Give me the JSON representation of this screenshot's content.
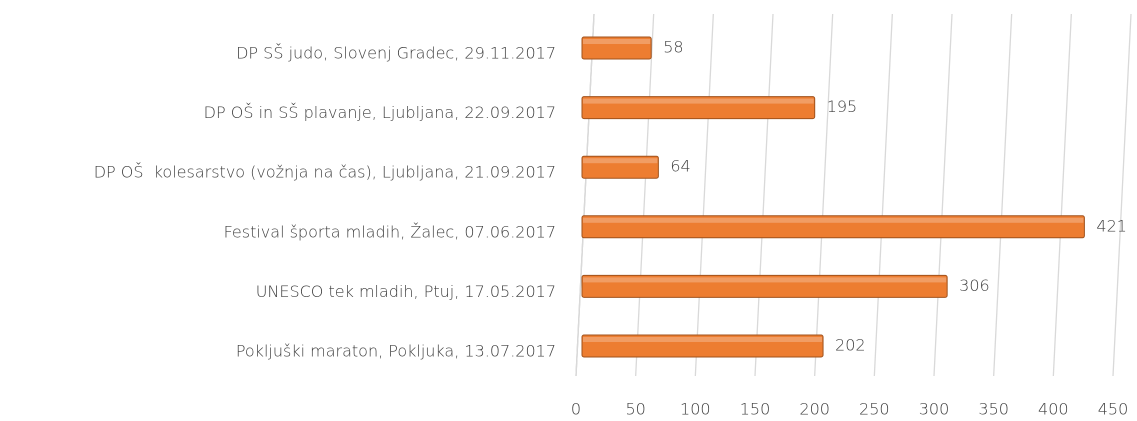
{
  "chart_data": {
    "type": "hbar",
    "categories": [
      "DP SŠ judo, Slovenj Gradec, 29.11.2017",
      "DP OŠ in SŠ plavanje, Ljubljana, 22.09.2017",
      "DP OŠ  kolesarstvo (vožnja na čas), Ljubljana, 21.09.2017",
      "Festival športa mladih, Žalec, 07.06.2017",
      "UNESCO tek mladih, Ptuj, 17.05.2017",
      "Pokljuški maraton, Pokljuka, 13.07.2017"
    ],
    "values": [
      58,
      195,
      64,
      421,
      306,
      202
    ],
    "color": "#ed7d31",
    "xlim": [
      0,
      450
    ],
    "xticks": [
      0,
      50,
      100,
      150,
      200,
      250,
      300,
      350,
      400,
      450
    ],
    "grid": true
  }
}
